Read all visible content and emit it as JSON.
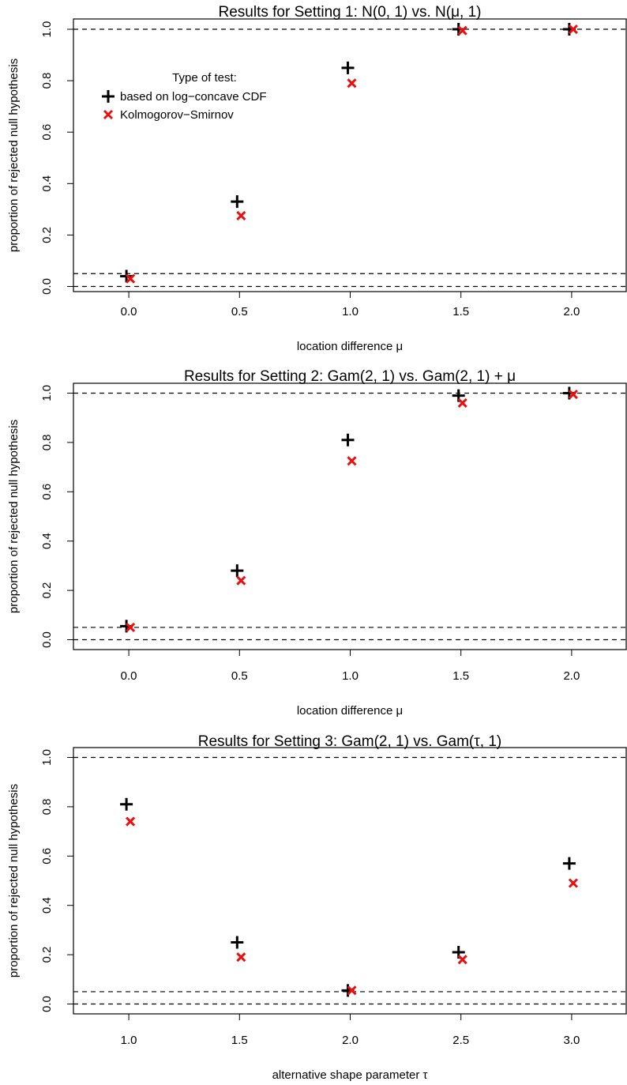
{
  "chart_data": [
    {
      "type": "scatter",
      "title": "Results for Setting 1:  N(0, 1) vs. N(μ, 1)",
      "xlabel": "location difference μ",
      "ylabel": "proportion of rejected null hypothesis",
      "x": [
        0.0,
        0.5,
        1.0,
        1.5,
        2.0
      ],
      "xticks": [
        "0.0",
        "0.5",
        "1.0",
        "1.5",
        "2.0"
      ],
      "yticks": [
        "0.0",
        "0.2",
        "0.4",
        "0.6",
        "0.8",
        "1.0"
      ],
      "xlim": [
        -0.25,
        2.25
      ],
      "ylim": [
        -0.02,
        1.04
      ],
      "grid": false,
      "reference_lines": [
        0,
        0.05,
        1
      ],
      "series": [
        {
          "name": "based on log−concave CDF",
          "marker": "plus",
          "color": "#000000",
          "values": [
            0.04,
            0.33,
            0.85,
            1.0,
            1.0
          ]
        },
        {
          "name": "Kolmogorov−Smirnov",
          "marker": "cross",
          "color": "#e8110f",
          "values": [
            0.03,
            0.275,
            0.79,
            0.995,
            1.0
          ]
        }
      ],
      "legend": {
        "title": "Type of test:",
        "placement": "top-left"
      }
    },
    {
      "type": "scatter",
      "title": "Results for Setting 2:  Gam(2, 1) vs. Gam(2, 1) + μ",
      "xlabel": "location difference μ",
      "ylabel": "proportion of rejected null hypothesis",
      "x": [
        0.0,
        0.5,
        1.0,
        1.5,
        2.0
      ],
      "xticks": [
        "0.0",
        "0.5",
        "1.0",
        "1.5",
        "2.0"
      ],
      "yticks": [
        "0.0",
        "0.2",
        "0.4",
        "0.6",
        "0.8",
        "1.0"
      ],
      "xlim": [
        -0.25,
        2.25
      ],
      "ylim": [
        -0.04,
        1.04
      ],
      "grid": false,
      "reference_lines": [
        0,
        0.05,
        1
      ],
      "series": [
        {
          "name": "based on log−concave CDF",
          "marker": "plus",
          "color": "#000000",
          "values": [
            0.055,
            0.28,
            0.81,
            0.99,
            1.0
          ]
        },
        {
          "name": "Kolmogorov−Smirnov",
          "marker": "cross",
          "color": "#e8110f",
          "values": [
            0.05,
            0.24,
            0.725,
            0.96,
            0.995
          ]
        }
      ]
    },
    {
      "type": "scatter",
      "title": "Results for Setting 3:  Gam(2, 1) vs. Gam(τ, 1)",
      "xlabel": "alternative shape parameter τ",
      "ylabel": "proportion of rejected null hypothesis",
      "x": [
        1.0,
        1.5,
        2.0,
        2.5,
        3.0
      ],
      "xticks": [
        "1.0",
        "1.5",
        "2.0",
        "2.5",
        "3.0"
      ],
      "yticks": [
        "0.0",
        "0.2",
        "0.4",
        "0.6",
        "0.8",
        "1.0"
      ],
      "xlim": [
        0.75,
        3.25
      ],
      "ylim": [
        -0.04,
        1.04
      ],
      "grid": false,
      "reference_lines": [
        0,
        0.05,
        1
      ],
      "series": [
        {
          "name": "based on log−concave CDF",
          "marker": "plus",
          "color": "#000000",
          "values": [
            0.81,
            0.25,
            0.055,
            0.21,
            0.57
          ]
        },
        {
          "name": "Kolmogorov−Smirnov",
          "marker": "cross",
          "color": "#e8110f",
          "values": [
            0.74,
            0.19,
            0.055,
            0.18,
            0.49
          ]
        }
      ]
    }
  ]
}
